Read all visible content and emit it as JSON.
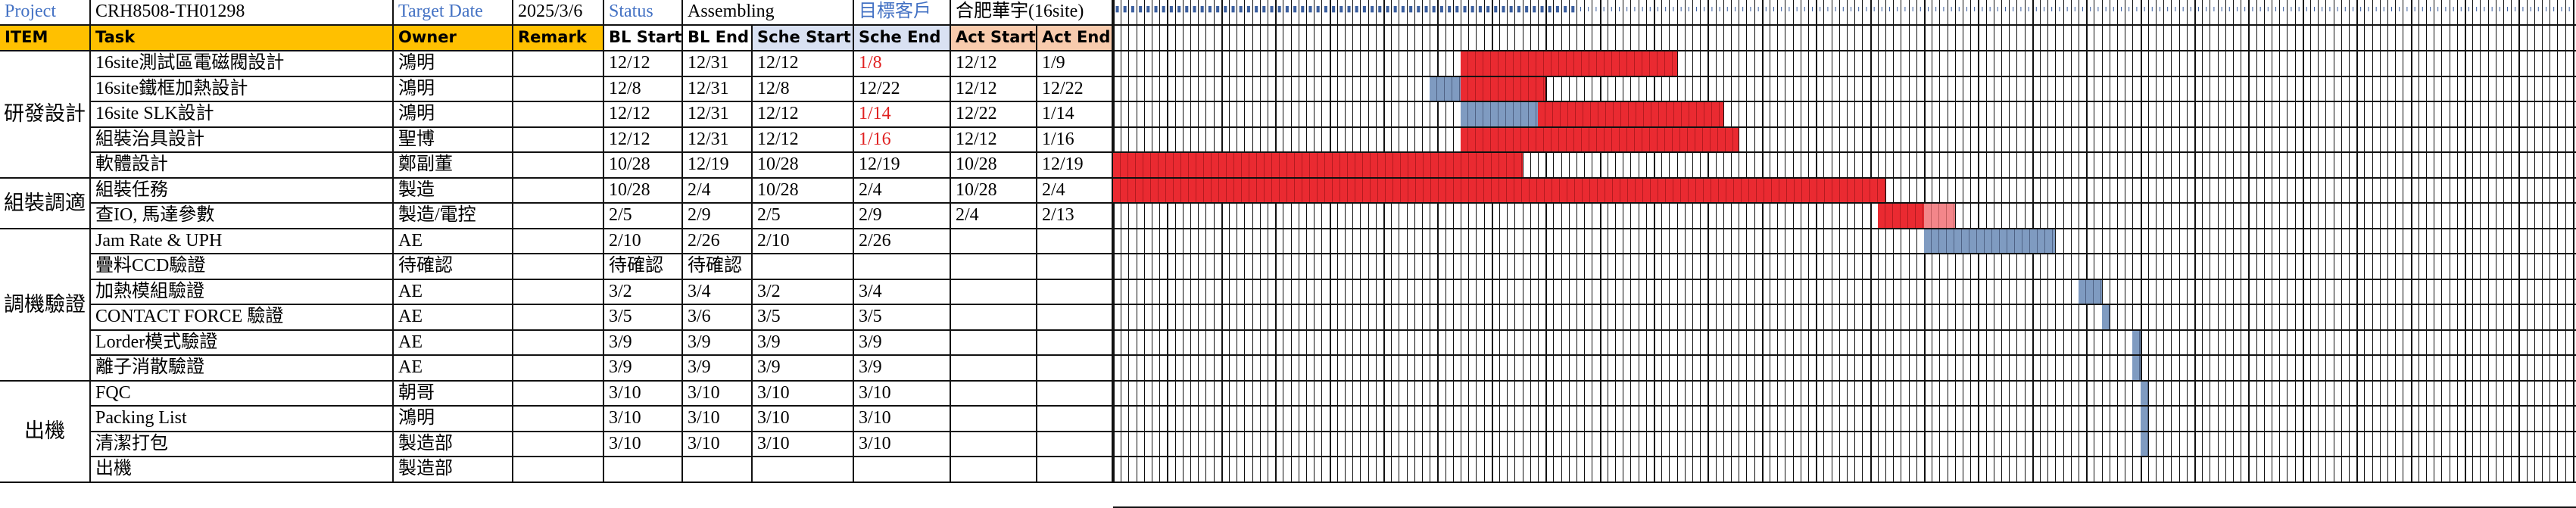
{
  "header": {
    "project_label": "Project",
    "project_value": "CRH8508-TH01298",
    "target_date_label": "Target Date",
    "target_date_value": "2025/3/6",
    "status_label": "Status",
    "status_value": "Assembling",
    "customer_label": "目標客戶",
    "customer_value": "合肥華宇(16site)"
  },
  "columns": {
    "item": "ITEM",
    "task": "Task",
    "owner": "Owner",
    "remark": "Remark",
    "bl_start": "BL Start",
    "bl_end": "BL End",
    "sche_start": "Sche Start",
    "sche_end": "Sche End",
    "act_start": "Act Start",
    "act_end": "Act End"
  },
  "groups": [
    {
      "name": "研發設計",
      "first_row": 0,
      "rows": 5
    },
    {
      "name": "組裝調適",
      "first_row": 5,
      "rows": 2
    },
    {
      "name": "調機驗證",
      "first_row": 7,
      "rows": 6
    },
    {
      "name": "出機",
      "first_row": 13,
      "rows": 4
    }
  ],
  "rows": [
    {
      "task": "16site測試區電磁閥設計",
      "owner": "鴻明",
      "remark": "",
      "bl_start": "12/12",
      "bl_end": "12/31",
      "sche_start": "12/12",
      "sche_end": "1/8",
      "sche_end_red": true,
      "act_start": "12/12",
      "act_end": "1/9"
    },
    {
      "task": "16site鐵框加熱設計",
      "owner": "鴻明",
      "remark": "",
      "bl_start": "12/8",
      "bl_end": "12/31",
      "sche_start": "12/8",
      "sche_end": "12/22",
      "sche_end_red": false,
      "act_start": "12/12",
      "act_end": "12/22"
    },
    {
      "task": "16site SLK設計",
      "owner": "鴻明",
      "remark": "",
      "bl_start": "12/12",
      "bl_end": "12/31",
      "sche_start": "12/12",
      "sche_end": "1/14",
      "sche_end_red": true,
      "act_start": "12/22",
      "act_end": "1/14"
    },
    {
      "task": "組裝治具設計",
      "owner": "聖博",
      "remark": "",
      "bl_start": "12/12",
      "bl_end": "12/31",
      "sche_start": "12/12",
      "sche_end": "1/16",
      "sche_end_red": true,
      "act_start": "12/12",
      "act_end": "1/16"
    },
    {
      "task": "軟體設計",
      "owner": "鄭副董",
      "remark": "",
      "bl_start": "10/28",
      "bl_end": "12/19",
      "sche_start": "10/28",
      "sche_end": "12/19",
      "sche_end_red": false,
      "act_start": "10/28",
      "act_end": "12/19"
    },
    {
      "task": "組裝任務",
      "owner": "製造",
      "remark": "",
      "bl_start": "10/28",
      "bl_end": "2/4",
      "sche_start": "10/28",
      "sche_end": "2/4",
      "sche_end_red": false,
      "act_start": "10/28",
      "act_end": "2/4"
    },
    {
      "task": "查IO, 馬達參數",
      "owner": "製造/電控",
      "remark": "",
      "bl_start": "2/5",
      "bl_end": "2/9",
      "sche_start": "2/5",
      "sche_end": "2/9",
      "sche_end_red": false,
      "act_start": "2/4",
      "act_end": "2/13"
    },
    {
      "task": "Jam Rate & UPH",
      "owner": "AE",
      "remark": "",
      "bl_start": "2/10",
      "bl_end": "2/26",
      "sche_start": "2/10",
      "sche_end": "2/26",
      "sche_end_red": false,
      "act_start": "",
      "act_end": ""
    },
    {
      "task": "疊料CCD驗證",
      "owner": "待確認",
      "remark": "",
      "bl_start": "待確認",
      "bl_end": "待確認",
      "sche_start": "",
      "sche_end": "",
      "sche_end_red": false,
      "act_start": "",
      "act_end": ""
    },
    {
      "task": "加熱模組驗證",
      "owner": "AE",
      "remark": "",
      "bl_start": "3/2",
      "bl_end": "3/4",
      "sche_start": "3/2",
      "sche_end": "3/4",
      "sche_end_red": false,
      "act_start": "",
      "act_end": ""
    },
    {
      "task": "CONTACT FORCE 驗證",
      "owner": "AE",
      "remark": "",
      "bl_start": "3/5",
      "bl_end": "3/6",
      "sche_start": "3/5",
      "sche_end": "3/5",
      "sche_end_red": false,
      "act_start": "",
      "act_end": ""
    },
    {
      "task": "Lorder模式驗證",
      "owner": "AE",
      "remark": "",
      "bl_start": "3/9",
      "bl_end": "3/9",
      "sche_start": "3/9",
      "sche_end": "3/9",
      "sche_end_red": false,
      "act_start": "",
      "act_end": ""
    },
    {
      "task": "離子消散驗證",
      "owner": "AE",
      "remark": "",
      "bl_start": "3/9",
      "bl_end": "3/9",
      "sche_start": "3/9",
      "sche_end": "3/9",
      "sche_end_red": false,
      "act_start": "",
      "act_end": ""
    },
    {
      "task": "FQC",
      "owner": "朝哥",
      "remark": "",
      "bl_start": "3/10",
      "bl_end": "3/10",
      "sche_start": "3/10",
      "sche_end": "3/10",
      "sche_end_red": false,
      "act_start": "",
      "act_end": ""
    },
    {
      "task": "Packing List",
      "owner": "鴻明",
      "remark": "",
      "bl_start": "3/10",
      "bl_end": "3/10",
      "sche_start": "3/10",
      "sche_end": "3/10",
      "sche_end_red": false,
      "act_start": "",
      "act_end": ""
    },
    {
      "task": "清潔打包",
      "owner": "製造部",
      "remark": "",
      "bl_start": "3/10",
      "bl_end": "3/10",
      "sche_start": "3/10",
      "sche_end": "3/10",
      "sche_end_red": false,
      "act_start": "",
      "act_end": ""
    },
    {
      "task": "出機",
      "owner": "製造部",
      "remark": "",
      "bl_start": "",
      "bl_end": "",
      "sche_start": "",
      "sche_end": "",
      "sche_end_red": false,
      "act_start": "",
      "act_end": ""
    }
  ],
  "gantt": {
    "timeline_start": "2024/10/28",
    "day_labels_visible": "illegible",
    "colors": {
      "actual": "#ea2a31",
      "actual_late": "#f3868a",
      "schedule": "#7f9bc1"
    },
    "bars": [
      {
        "row": 0,
        "kind": "actual",
        "start": "12/12",
        "end": "1/8"
      },
      {
        "row": 1,
        "kind": "schedule",
        "start": "12/8",
        "end": "12/11"
      },
      {
        "row": 1,
        "kind": "actual",
        "start": "12/12",
        "end": "12/22"
      },
      {
        "row": 2,
        "kind": "schedule",
        "start": "12/12",
        "end": "12/21"
      },
      {
        "row": 2,
        "kind": "actual",
        "start": "12/22",
        "end": "1/14"
      },
      {
        "row": 3,
        "kind": "actual",
        "start": "12/12",
        "end": "1/16"
      },
      {
        "row": 4,
        "kind": "actual",
        "start": "10/28",
        "end": "12/19"
      },
      {
        "row": 5,
        "kind": "actual",
        "start": "10/28",
        "end": "2/4"
      },
      {
        "row": 6,
        "kind": "actual",
        "start": "2/4",
        "end": "2/9"
      },
      {
        "row": 6,
        "kind": "actual_late",
        "start": "2/10",
        "end": "2/13"
      },
      {
        "row": 7,
        "kind": "schedule",
        "start": "2/10",
        "end": "2/26"
      },
      {
        "row": 9,
        "kind": "schedule",
        "start": "3/2",
        "end": "3/4"
      },
      {
        "row": 10,
        "kind": "schedule",
        "start": "3/5",
        "end": "3/5"
      },
      {
        "row": 11,
        "kind": "schedule",
        "start": "3/9",
        "end": "3/9"
      },
      {
        "row": 12,
        "kind": "schedule",
        "start": "3/9",
        "end": "3/9"
      },
      {
        "row": 13,
        "kind": "schedule",
        "start": "3/10",
        "end": "3/10"
      },
      {
        "row": 14,
        "kind": "schedule",
        "start": "3/10",
        "end": "3/10"
      },
      {
        "row": 15,
        "kind": "schedule",
        "start": "3/10",
        "end": "3/10"
      }
    ]
  }
}
